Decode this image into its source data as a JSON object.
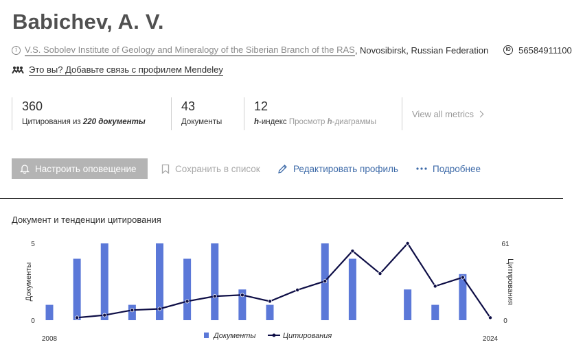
{
  "author": {
    "name": "Babichev, A. V."
  },
  "affiliation": {
    "institute": "V.S. Sobolev Institute of Geology and Mineralogy of the Siberian Branch of the RAS",
    "location": ", Novosibirsk, Russian Federation",
    "scopus_id": "56584911100"
  },
  "mendeley": {
    "text": "Это вы? Добавьте связь с профилем Mendeley"
  },
  "metrics": {
    "citations": {
      "value": "360",
      "label_prefix": "Цитирования из ",
      "label_bold": "220 документы"
    },
    "documents": {
      "value": "43",
      "label": "Документы"
    },
    "hindex": {
      "value": "12",
      "label_italic": "h",
      "label_rest": "-индекс ",
      "link_prefix": "Просмотр ",
      "link_italic": "h",
      "link_rest": "-диаграммы"
    },
    "view_all": "View all metrics"
  },
  "actions": {
    "alert": "Настроить оповещение",
    "save": "Сохранить в список",
    "edit": "Редактировать профиль",
    "more": "Подробнее"
  },
  "colors": {
    "bar": "#5b78d8",
    "line": "#0e0e46",
    "alert_bg": "#b4b4b4",
    "link_blue": "#3d6aa8"
  },
  "chart_title": "Документ и тенденции цитирования",
  "chart_data": {
    "type": "bar+line",
    "x": [
      2008,
      2009,
      2010,
      2011,
      2012,
      2013,
      2014,
      2015,
      2016,
      2017,
      2018,
      2019,
      2020,
      2021,
      2022,
      2023,
      2024
    ],
    "x_tick_labels": [
      "2008",
      "2024"
    ],
    "series": [
      {
        "name": "Документы",
        "kind": "bar",
        "axis": "left",
        "values": [
          1,
          4,
          5,
          1,
          5,
          4,
          5,
          2,
          1,
          0,
          5,
          4,
          0,
          2,
          1,
          3,
          0
        ]
      },
      {
        "name": "Цитирования",
        "kind": "line",
        "axis": "right",
        "values": [
          null,
          2,
          4,
          8,
          9,
          15,
          19,
          20,
          15,
          24,
          31,
          55,
          37,
          61,
          27,
          34,
          2
        ]
      }
    ],
    "ylabel_left": "Документы",
    "ylabel_right": "Цитирования",
    "ylim_left": [
      0,
      5
    ],
    "ylim_right": [
      0,
      61
    ],
    "left_ticks": [
      "5",
      "0"
    ],
    "right_ticks": [
      "61",
      "0"
    ],
    "legend_position": "bottom-center",
    "grid": false
  }
}
